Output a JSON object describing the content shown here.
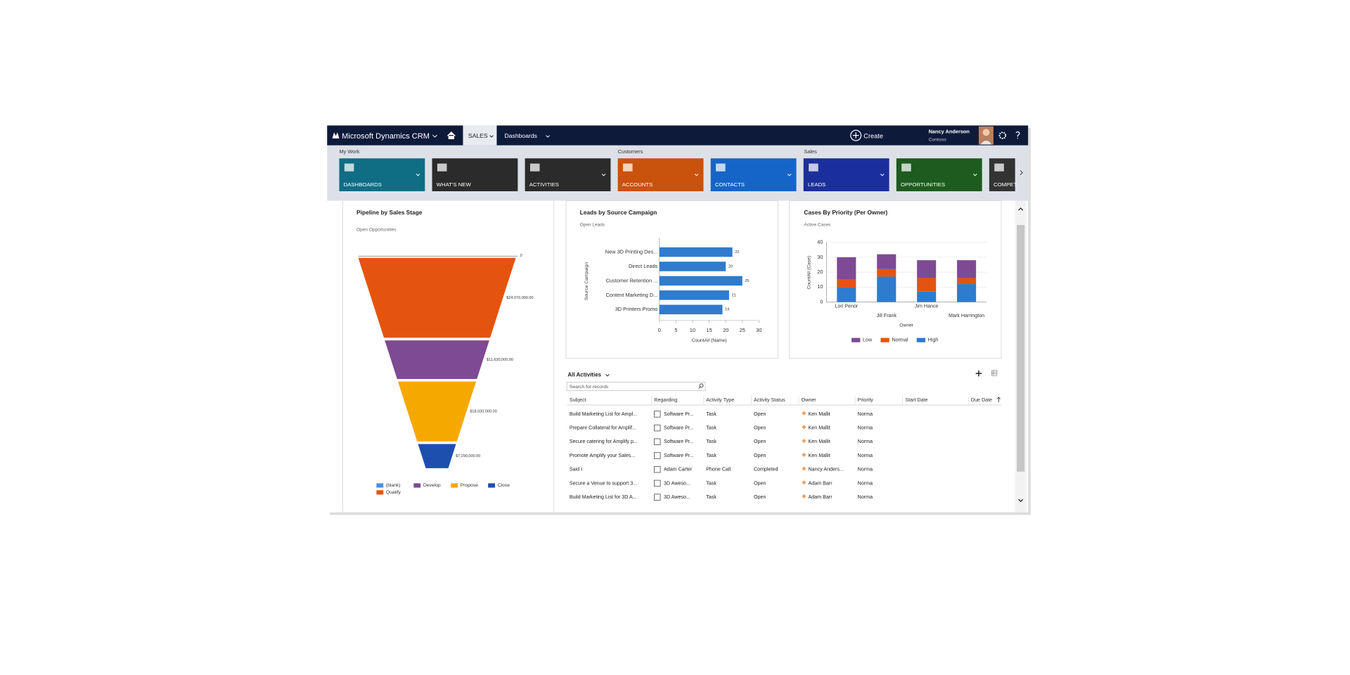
{
  "nav": {
    "brand": "Microsoft Dynamics CRM",
    "area": "SALES",
    "section": "Dashboards",
    "create": "Create",
    "user": "Nancy Anderson",
    "org": "Contoso"
  },
  "tile_groups": [
    "My Work",
    "Customers",
    "Sales"
  ],
  "tiles": [
    {
      "label": "DASHBOARDS",
      "color": "#0f6e84"
    },
    {
      "label": "WHAT'S NEW",
      "color": "#2b2b2b"
    },
    {
      "label": "ACTIVITIES",
      "color": "#2b2b2b"
    },
    {
      "label": "ACCOUNTS",
      "color": "#c9520d"
    },
    {
      "label": "CONTACTS",
      "color": "#1565c8"
    },
    {
      "label": "LEADS",
      "color": "#1b2f9c"
    },
    {
      "label": "OPPORTUNITIES",
      "color": "#1e5b1f"
    },
    {
      "label": "COMPET",
      "color": "#333333"
    }
  ],
  "chart_data": [
    {
      "type": "funnel",
      "title": "Pipeline by Sales Stage",
      "subtitle": "Open Opportunities",
      "categories": [
        "(blank)",
        "Qualify",
        "Develop",
        "Propose",
        "Close"
      ],
      "values": [
        0,
        24070000,
        11630000,
        18030000,
        7290000
      ],
      "value_labels": [
        "0",
        "$24,070,000.00",
        "$11,630,000.00",
        "$18,030,000.00",
        "$7,290,000.00"
      ],
      "colors": [
        "#4a8fd8",
        "#e5540f",
        "#7f4a94",
        "#f5a800",
        "#1d4fae"
      ],
      "legend": "bottom"
    },
    {
      "type": "hbar",
      "title": "Leads by Source Campaign",
      "subtitle": "Open Leads",
      "categories": [
        "New 3D Printing Des...",
        "Direct Leads",
        "Customer Retention ...",
        "Content Marketing D...",
        "3D Printers Promo"
      ],
      "values": [
        22,
        20,
        25,
        21,
        19
      ],
      "color": "#2f7bcd",
      "xlim": [
        0,
        30
      ],
      "xticks": [
        0,
        5,
        10,
        15,
        20,
        25,
        30
      ],
      "xlabel": "CountAll (Name)",
      "ylabel": "Source Campaign"
    },
    {
      "type": "stacked_bar",
      "title": "Cases By Priority (Per Owner)",
      "subtitle": "Active Cases",
      "categories": [
        "Lori Penor",
        "Jill Frank",
        "Jim Hance",
        "Mark Harrington"
      ],
      "series": [
        {
          "name": "Low",
          "color": "#7f4a94",
          "values": [
            15,
            10,
            12,
            12
          ]
        },
        {
          "name": "Normal",
          "color": "#e5540f",
          "values": [
            5,
            5,
            9,
            4
          ]
        },
        {
          "name": "High",
          "color": "#2f7bcd",
          "values": [
            10,
            17,
            7,
            12
          ]
        }
      ],
      "stack_order": [
        2,
        1,
        0
      ],
      "ylim": [
        0,
        40
      ],
      "yticks": [
        0,
        10,
        20,
        30,
        40
      ],
      "grid": true,
      "xlabel": "Owner",
      "ylabel": "CountAll (Case)",
      "legend": "bottom"
    }
  ],
  "activities": {
    "title": "All Activities",
    "search_placeholder": "Search for records",
    "columns": [
      "Subject",
      "Regarding",
      "Activity Type",
      "Activity Status",
      "Owner",
      "Priority",
      "Start Date",
      "Due Date"
    ],
    "rows": [
      [
        "Build Marketing List for Ampl...",
        "Software Pr...",
        "Task",
        "Open",
        "Ken Mallit",
        "Norma"
      ],
      [
        "Prepare Collateral for Amplif...",
        "Software Pr...",
        "Task",
        "Open",
        "Ken Mallit",
        "Norma"
      ],
      [
        "Secure catering for Amplify p...",
        "Software Pr...",
        "Task",
        "Open",
        "Ken Mallit",
        "Norma"
      ],
      [
        "Promote Amplify your Sales...",
        "Software Pr...",
        "Task",
        "Open",
        "Ken Mallit",
        "Norma"
      ],
      [
        "Said I",
        "Adam Carter",
        "Phone Call",
        "Completed",
        "Nancy Anders...",
        "Norma"
      ],
      [
        "Secure a Venue to support 3...",
        "3D Aweso...",
        "Task",
        "Open",
        "Adam Barr",
        "Norma"
      ],
      [
        "Build Marketing List for 3D A...",
        "3D Aweso...",
        "Task",
        "Open",
        "Adam Barr",
        "Norma"
      ]
    ]
  }
}
